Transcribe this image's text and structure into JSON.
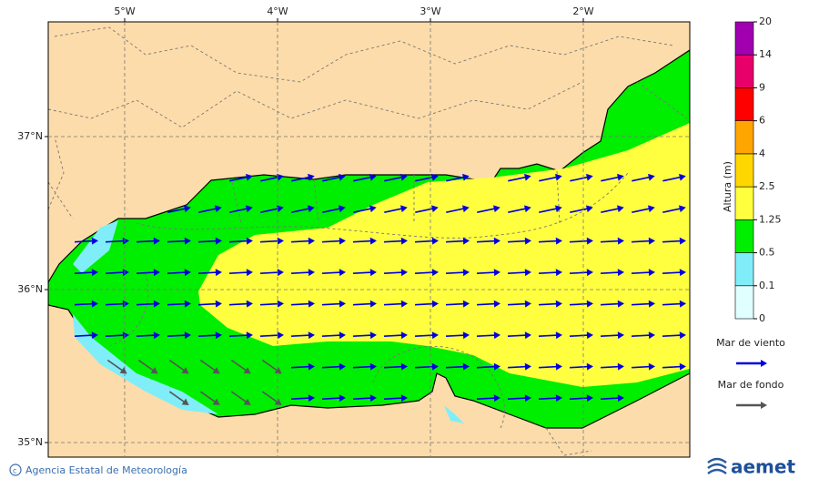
{
  "map": {
    "lon_labels": [
      "5°W",
      "4°W",
      "3°W",
      "2°W"
    ],
    "lat_labels": [
      "37°N",
      "36°N",
      "35°N"
    ]
  },
  "colorbar": {
    "title": "Altura (m)",
    "labels": [
      "0",
      "0.1",
      "0.5",
      "1.25",
      "2.5",
      "4",
      "6",
      "9",
      "14",
      "20"
    ],
    "colors": [
      "#e0ffff",
      "#80eef8",
      "#00ee00",
      "#ffff40",
      "#ffd700",
      "#ffa500",
      "#ff0000",
      "#e8006a",
      "#a000b0"
    ]
  },
  "legend": [
    {
      "label": "Mar de viento",
      "color": "#0000dd"
    },
    {
      "label": "Mar de fondo",
      "color": "#555555"
    }
  ],
  "footer": {
    "credit": "Agencia Estatal de Meteorología",
    "logo": "aemet"
  }
}
